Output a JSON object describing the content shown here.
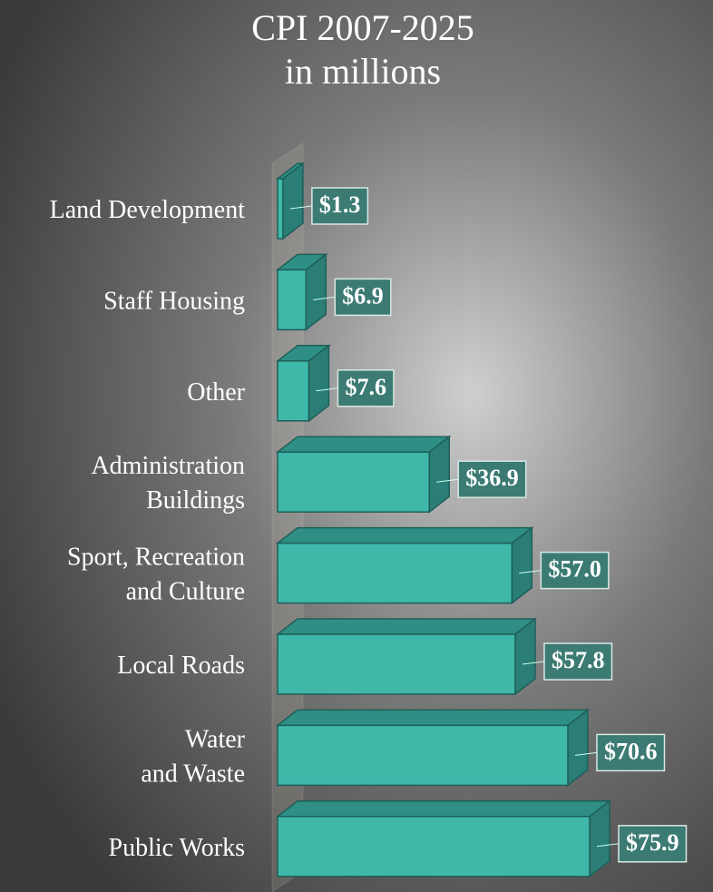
{
  "chart_data": {
    "type": "bar3d_horizontal",
    "title": "CPI 2007-2025",
    "subtitle": "in millions",
    "categories": [
      "Land Development",
      "Staff Housing",
      "Other",
      "Administration\nBuildings",
      "Sport, Recreation\nand Culture",
      "Local Roads",
      "Water\nand Waste",
      "Public Works"
    ],
    "values": [
      1.3,
      6.9,
      7.6,
      36.9,
      57.0,
      57.8,
      70.6,
      75.9
    ],
    "value_labels": [
      "$1.3",
      "$6.9",
      "$7.6",
      "$36.9",
      "$57.0",
      "$57.8",
      "$70.6",
      "$75.9"
    ],
    "color": "#3fb8aa"
  }
}
